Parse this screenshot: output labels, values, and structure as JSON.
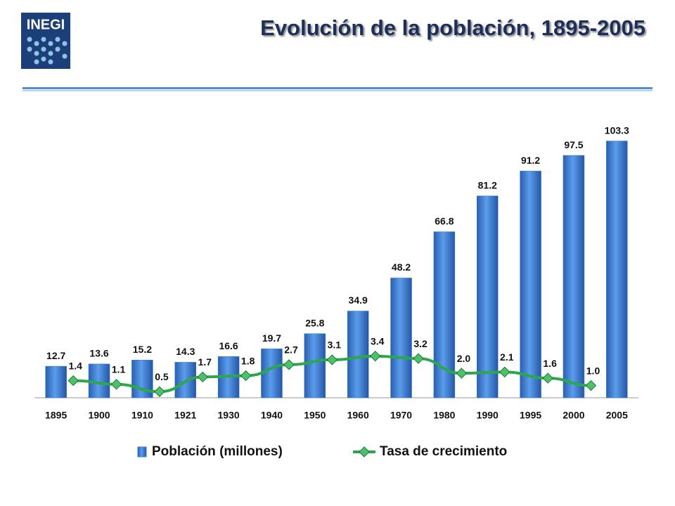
{
  "logo": "INEGI",
  "chart_data": {
    "type": "bar-line",
    "title": "Evolución de la población, 1895-2005",
    "categories": [
      "1895",
      "1900",
      "1910",
      "1921",
      "1930",
      "1940",
      "1950",
      "1960",
      "1970",
      "1980",
      "1990",
      "1995",
      "2000",
      "2005"
    ],
    "series": [
      {
        "name": "Población (millones)",
        "type": "bar",
        "color": "#3b7dd8",
        "values": [
          12.7,
          13.6,
          15.2,
          14.3,
          16.6,
          19.7,
          25.8,
          34.9,
          48.2,
          66.8,
          81.2,
          91.2,
          97.5,
          103.3
        ]
      },
      {
        "name": "Tasa de crecimiento",
        "type": "line",
        "axis": "y2",
        "color": "#2ca84a",
        "values": [
          1.4,
          1.1,
          0.5,
          1.7,
          1.8,
          2.7,
          3.1,
          3.4,
          3.2,
          2.0,
          2.1,
          1.6,
          1.0,
          null
        ],
        "value_labels": [
          "1.4",
          "1.1",
          "0.5",
          "1.7",
          "1.8",
          "2.7",
          "3.1",
          "3.4",
          "3.2",
          "2.0",
          "2.1",
          "1.6",
          "1.0",
          null
        ]
      }
    ],
    "ylim": [
      0,
      106
    ],
    "y2lim": [
      0,
      21.5
    ],
    "legend": "bottom"
  }
}
